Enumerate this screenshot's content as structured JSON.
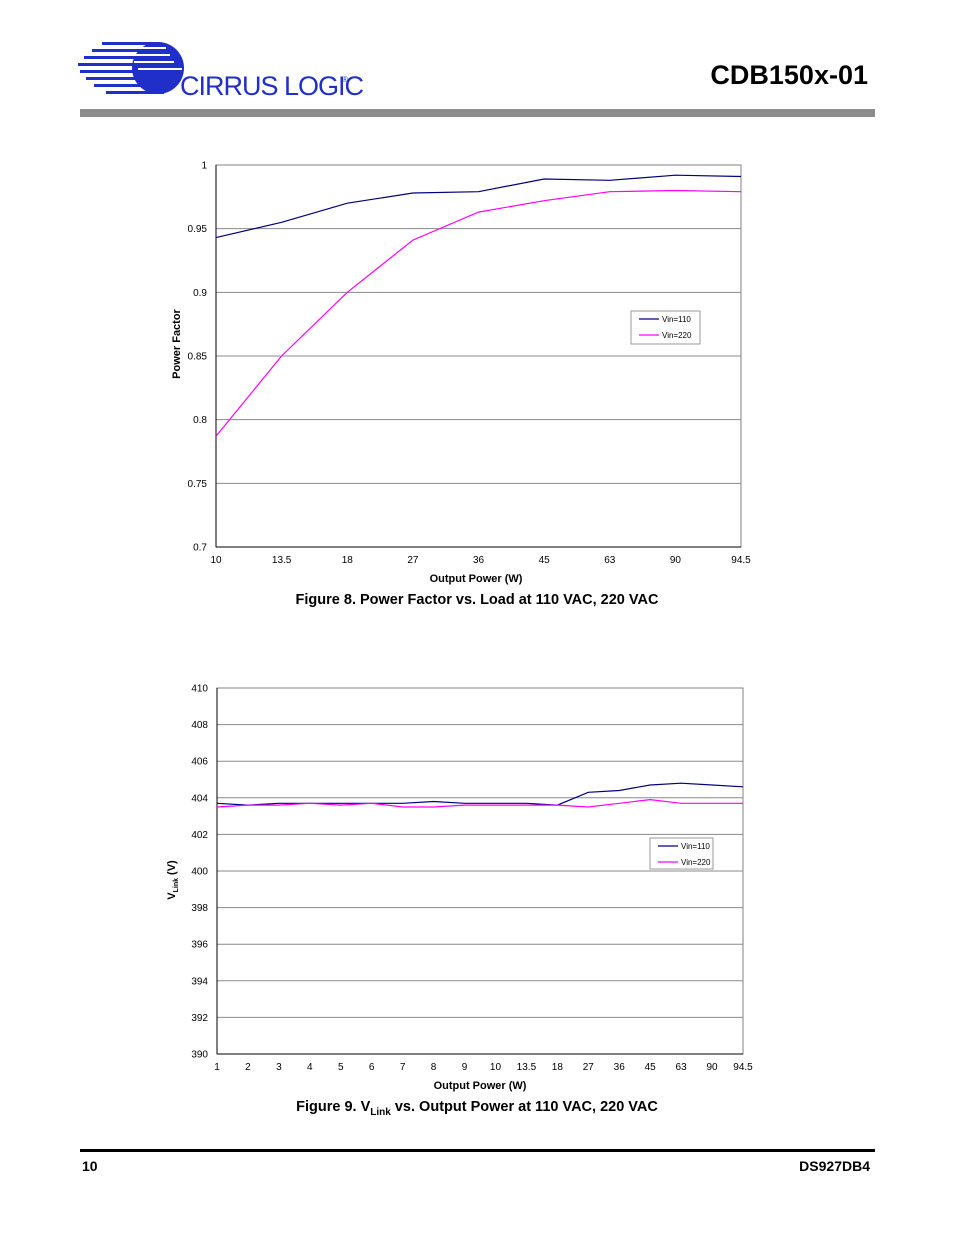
{
  "header": {
    "brand": "CIRRUS LOGIC",
    "brand_mark": "®",
    "brand_color": "#1f2fc7",
    "doc_title": "CDB150x-01"
  },
  "footer": {
    "page_number": "10",
    "doc_id": "DS927DB4"
  },
  "figures": {
    "fig8_caption": "Figure 8.  Power Factor vs. Load at 110 VAC, 220 VAC",
    "fig9_caption_prefix": "Figure 9.  V",
    "fig9_caption_sub": "Link",
    "fig9_caption_suffix": " vs. Output Power at 110 VAC, 220 VAC"
  },
  "chart_data": [
    {
      "type": "line",
      "xlabel": "Output Power (W)",
      "ylabel": "Power Factor",
      "categories": [
        "10",
        "13.5",
        "18",
        "27",
        "36",
        "45",
        "63",
        "90",
        "94.5"
      ],
      "yticks": [
        "0.7",
        "0.75",
        "0.8",
        "0.85",
        "0.9",
        "0.95",
        "1"
      ],
      "ylim": [
        0.7,
        1.0
      ],
      "grid": true,
      "legend": "right",
      "series": [
        {
          "name": "Vin=110",
          "color": "#000080",
          "values": [
            0.943,
            0.955,
            0.97,
            0.978,
            0.979,
            0.989,
            0.988,
            0.992,
            0.991
          ]
        },
        {
          "name": "Vin=220",
          "color": "#ff00ff",
          "values": [
            0.787,
            0.85,
            0.9,
            0.941,
            0.963,
            0.972,
            0.979,
            0.98,
            0.979
          ]
        }
      ]
    },
    {
      "type": "line",
      "xlabel": "Output Power (W)",
      "ylabel": "V",
      "ylabel_sub": "Link",
      "ylabel_suffix": " (V)",
      "categories": [
        "1",
        "2",
        "3",
        "4",
        "5",
        "6",
        "7",
        "8",
        "9",
        "10",
        "13.5",
        "18",
        "27",
        "36",
        "45",
        "63",
        "90",
        "94.5"
      ],
      "yticks": [
        "390",
        "392",
        "394",
        "396",
        "398",
        "400",
        "402",
        "404",
        "406",
        "408",
        "410"
      ],
      "ylim": [
        390,
        410
      ],
      "grid": true,
      "legend": "right",
      "series": [
        {
          "name": "Vin=110",
          "color": "#000080",
          "values": [
            403.7,
            403.6,
            403.7,
            403.7,
            403.7,
            403.7,
            403.7,
            403.8,
            403.7,
            403.7,
            403.7,
            403.6,
            404.3,
            404.4,
            404.7,
            404.8,
            404.7,
            404.6
          ]
        },
        {
          "name": "Vin=220",
          "color": "#ff00ff",
          "values": [
            403.5,
            403.6,
            403.6,
            403.7,
            403.6,
            403.7,
            403.5,
            403.5,
            403.6,
            403.6,
            403.6,
            403.6,
            403.5,
            403.7,
            403.9,
            403.7,
            403.7,
            403.7
          ]
        }
      ]
    }
  ]
}
